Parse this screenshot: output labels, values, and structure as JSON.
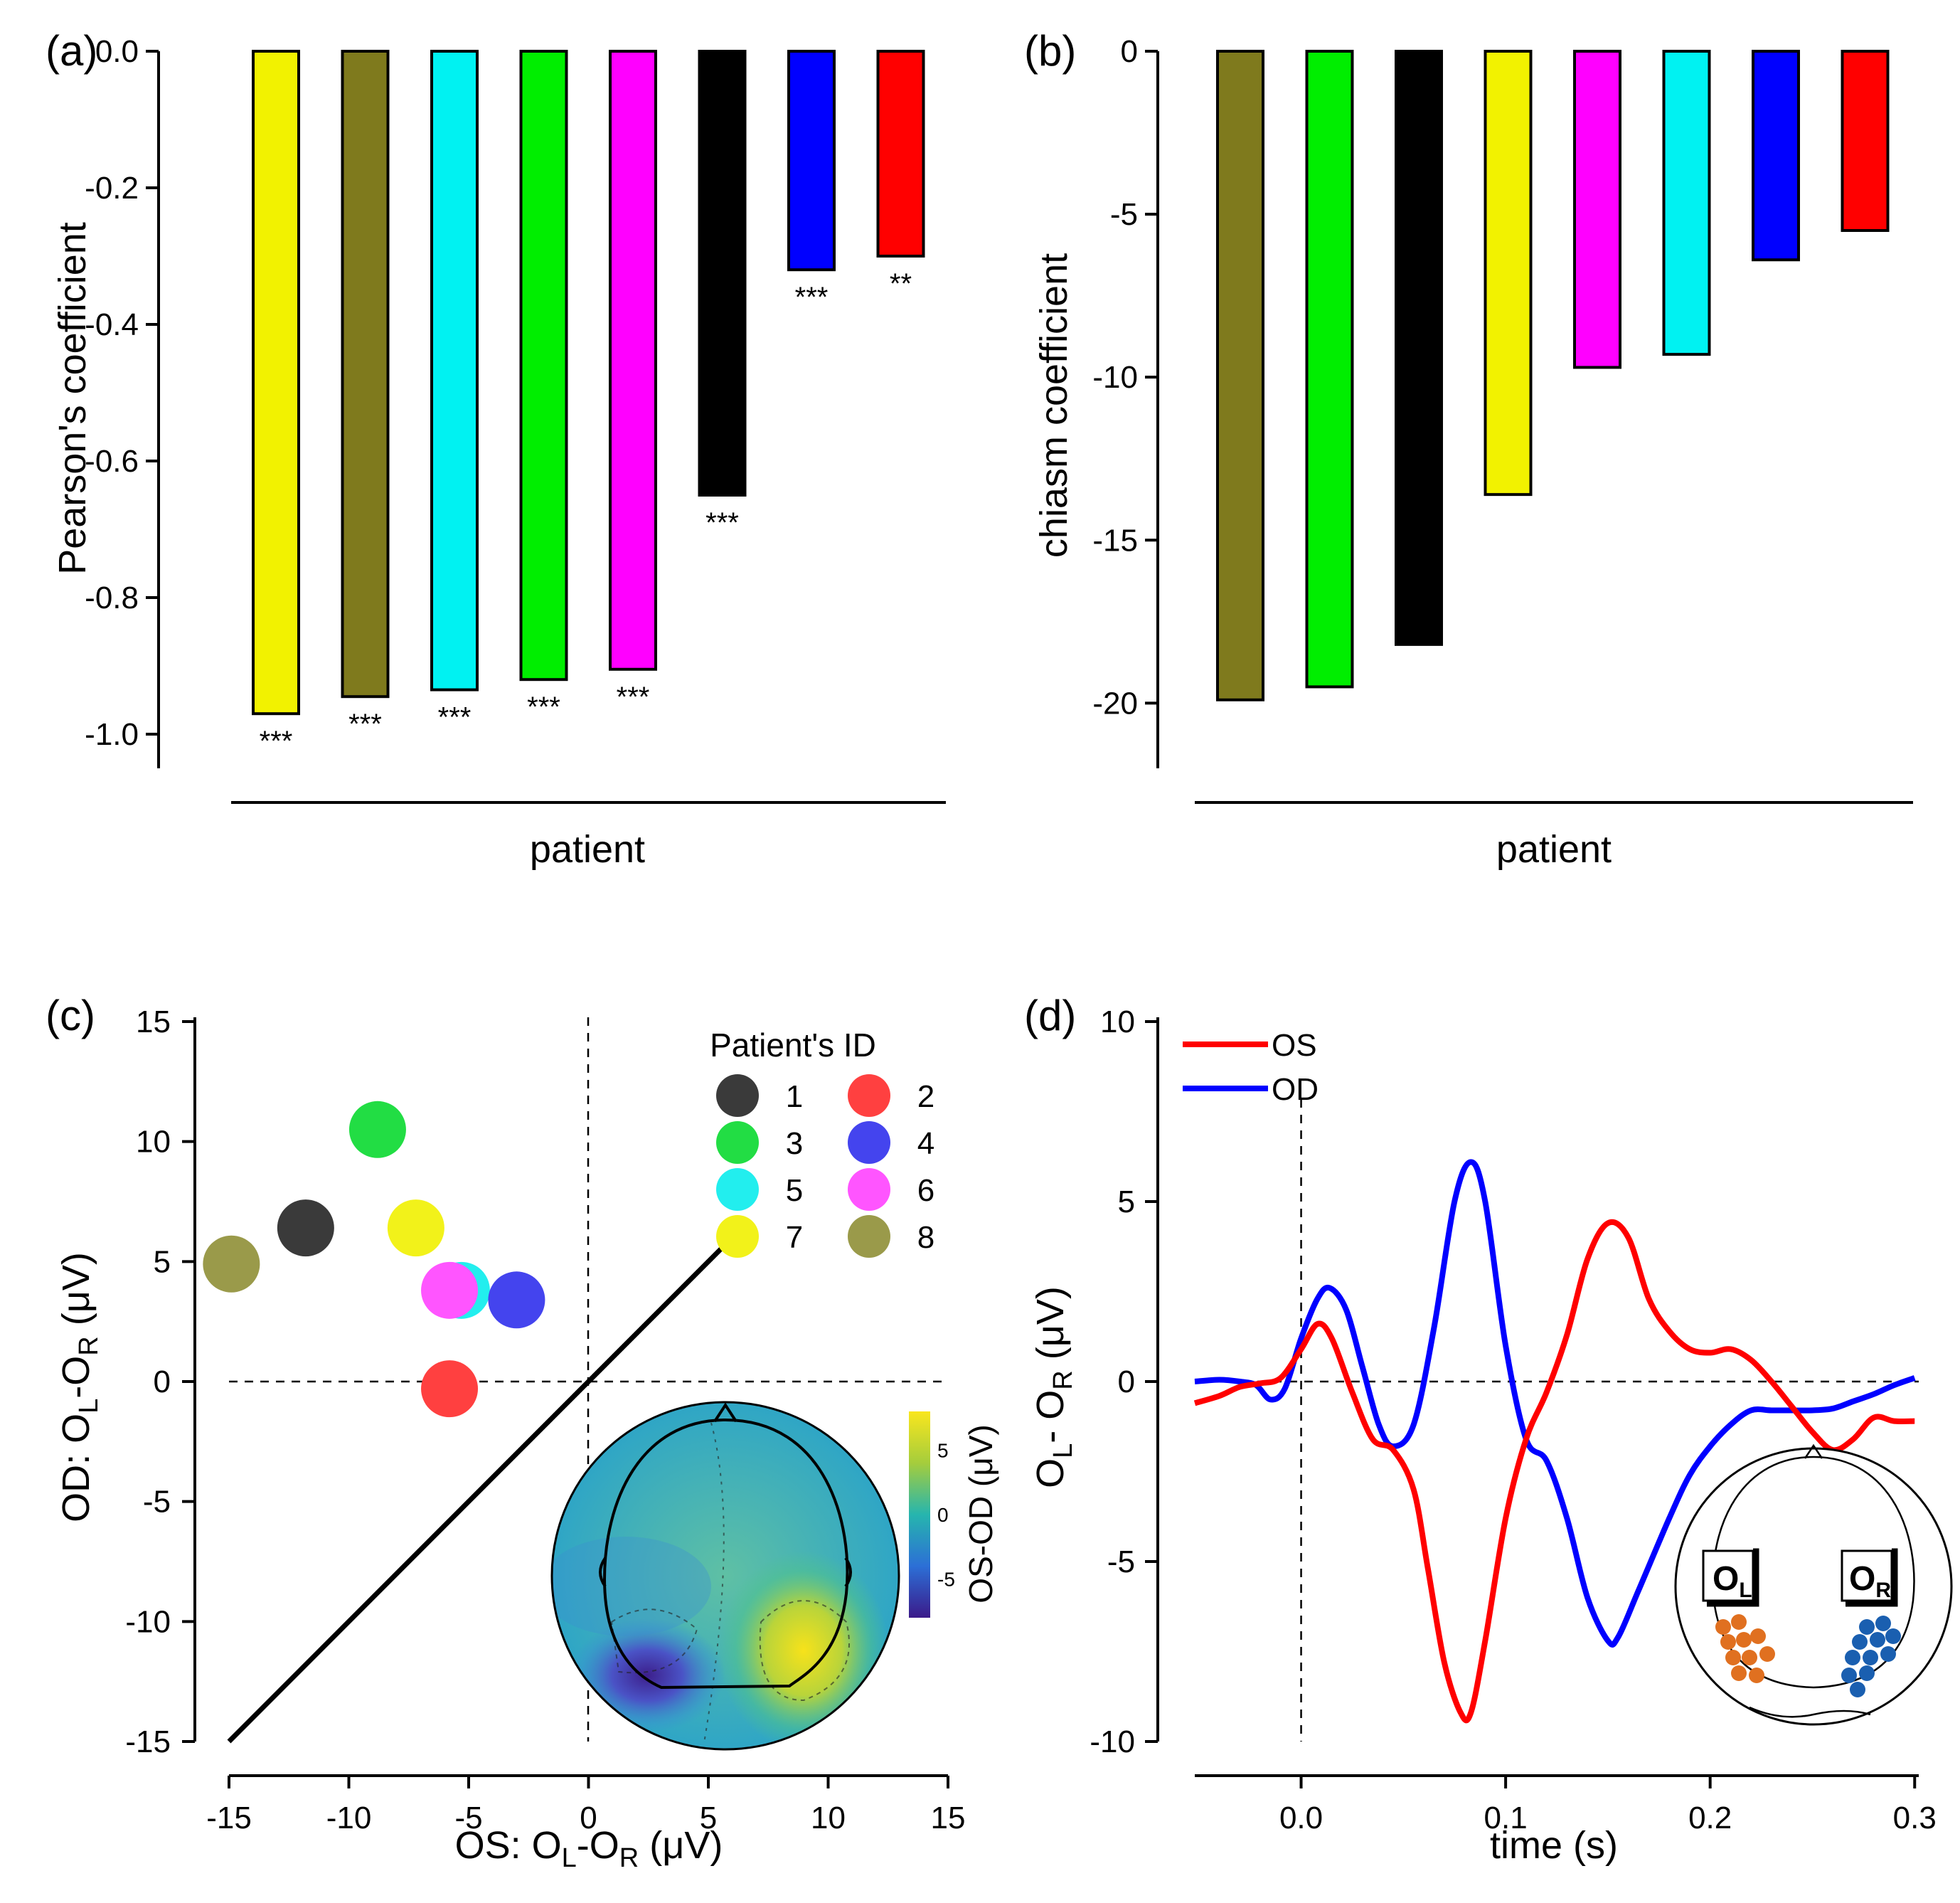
{
  "chart_data": [
    {
      "panel": "(a)",
      "type": "bar",
      "ylabel": "Pearson's coefficient",
      "xlabel": "patient",
      "ylim": [
        -1.05,
        0.0
      ],
      "yticks": [
        "0.0",
        "-0.2",
        "-0.4",
        "-0.6",
        "-0.8",
        "-1.0"
      ],
      "ytick_values": [
        0,
        -0.2,
        -0.4,
        -0.6,
        -0.8,
        -1.0
      ],
      "bars": [
        {
          "value": -0.97,
          "color": "#f2f200",
          "sig": "***"
        },
        {
          "value": -0.945,
          "color": "#7f7a1d",
          "sig": "***"
        },
        {
          "value": -0.935,
          "color": "#00f2f2",
          "sig": "***"
        },
        {
          "value": -0.92,
          "color": "#00ee00",
          "sig": "***"
        },
        {
          "value": -0.905,
          "color": "#ff00ff",
          "sig": "***"
        },
        {
          "value": -0.65,
          "color": "#000000",
          "sig": "***"
        },
        {
          "value": -0.32,
          "color": "#0000ff",
          "sig": "***"
        },
        {
          "value": -0.3,
          "color": "#ff0000",
          "sig": "**"
        }
      ]
    },
    {
      "panel": "(b)",
      "type": "bar",
      "ylabel": "chiasm coefficient",
      "xlabel": "patient",
      "ylim": [
        -22,
        0
      ],
      "yticks": [
        "0",
        "-5",
        "-10",
        "-15",
        "-20"
      ],
      "ytick_values": [
        0,
        -5,
        -10,
        -15,
        -20
      ],
      "bars": [
        {
          "value": -19.9,
          "color": "#7f7a1d"
        },
        {
          "value": -19.5,
          "color": "#00ee00"
        },
        {
          "value": -18.2,
          "color": "#000000"
        },
        {
          "value": -13.6,
          "color": "#f2f200"
        },
        {
          "value": -9.7,
          "color": "#ff00ff"
        },
        {
          "value": -9.3,
          "color": "#00f2f2"
        },
        {
          "value": -6.4,
          "color": "#0000ff"
        },
        {
          "value": -5.5,
          "color": "#ff0000"
        }
      ]
    },
    {
      "panel": "(c)",
      "type": "scatter",
      "xlabel_main": "OS: O",
      "xlabel_sub1": "L",
      "xlabel_mid": "-O",
      "xlabel_sub2": "R",
      "xlabel_unit": " (μV)",
      "ylabel_main": "OD: O",
      "ylabel_sub1": "L",
      "ylabel_mid": "-O",
      "ylabel_sub2": "R",
      "ylabel_unit": " (μV)",
      "xlim": [
        -15,
        15
      ],
      "ylim": [
        -15,
        15
      ],
      "xticks": [
        "-15",
        "-10",
        "-5",
        "0",
        "5",
        "10",
        "15"
      ],
      "yticks": [
        "15",
        "10",
        "5",
        "0",
        "-5",
        "-10",
        "-15"
      ],
      "tick_values": [
        -15,
        -10,
        -5,
        0,
        5,
        10,
        15
      ],
      "legend_title": "Patient's ID",
      "points": [
        {
          "id": "1",
          "x": -11.8,
          "y": 6.4,
          "color": "#3a3a3a"
        },
        {
          "id": "2",
          "x": -5.8,
          "y": -0.3,
          "color": "#ff4040"
        },
        {
          "id": "3",
          "x": -8.8,
          "y": 10.5,
          "color": "#22dd44"
        },
        {
          "id": "4",
          "x": -3.0,
          "y": 3.4,
          "color": "#4444ee"
        },
        {
          "id": "5",
          "x": -5.3,
          "y": 3.8,
          "color": "#22eeee"
        },
        {
          "id": "6",
          "x": -5.8,
          "y": 3.8,
          "color": "#ff55ff"
        },
        {
          "id": "7",
          "x": -7.2,
          "y": 6.4,
          "color": "#f2f21a"
        },
        {
          "id": "8",
          "x": -14.9,
          "y": 4.9,
          "color": "#9a9a4a"
        }
      ],
      "diagonal": [
        [
          -15,
          -15
        ],
        [
          6,
          6
        ]
      ],
      "colorbar_label": "OS-OD (μV)",
      "colorbar_ticks": [
        "5",
        "0",
        "-5"
      ],
      "colorbar_tick_values": [
        5,
        0,
        -5
      ],
      "colorbar_range": [
        -8,
        8
      ]
    },
    {
      "panel": "(d)",
      "type": "line",
      "xlabel": "time (s)",
      "ylabel_main": "O",
      "ylabel_sub1": "L",
      "ylabel_mid": "- O",
      "ylabel_sub2": "R",
      "ylabel_unit": " (μV)",
      "xlim": [
        -0.052,
        0.302
      ],
      "ylim": [
        -10,
        10
      ],
      "xticks": [
        "0.0",
        "0.1",
        "0.2",
        "0.3"
      ],
      "xtick_values": [
        0.0,
        0.1,
        0.2,
        0.3
      ],
      "yticks": [
        "10",
        "5",
        "0",
        "-5",
        "-10"
      ],
      "ytick_values": [
        10,
        5,
        0,
        -5,
        -10
      ],
      "series": [
        {
          "name": "OS",
          "color": "#ff0000",
          "x": [
            -0.052,
            -0.04,
            -0.03,
            -0.02,
            -0.01,
            0.0,
            0.008,
            0.015,
            0.025,
            0.035,
            0.045,
            0.055,
            0.062,
            0.07,
            0.078,
            0.083,
            0.09,
            0.1,
            0.11,
            0.12,
            0.13,
            0.14,
            0.15,
            0.16,
            0.17,
            0.18,
            0.19,
            0.2,
            0.21,
            0.22,
            0.23,
            0.24,
            0.25,
            0.26,
            0.27,
            0.28,
            0.29,
            0.3
          ],
          "y": [
            -0.6,
            -0.4,
            -0.15,
            -0.05,
            0.1,
            0.9,
            1.6,
            1.2,
            -0.3,
            -1.6,
            -1.9,
            -3.0,
            -5.2,
            -7.8,
            -9.2,
            -9.2,
            -7.2,
            -3.8,
            -1.6,
            -0.3,
            1.3,
            3.4,
            4.4,
            4.0,
            2.3,
            1.4,
            0.9,
            0.8,
            0.9,
            0.6,
            0.0,
            -0.7,
            -1.4,
            -1.9,
            -1.6,
            -1.0,
            -1.1,
            -1.1
          ]
        },
        {
          "name": "OD",
          "color": "#0000ff",
          "x": [
            -0.052,
            -0.04,
            -0.03,
            -0.022,
            -0.015,
            -0.008,
            0.0,
            0.008,
            0.014,
            0.022,
            0.03,
            0.038,
            0.045,
            0.055,
            0.065,
            0.075,
            0.083,
            0.09,
            0.1,
            0.11,
            0.12,
            0.13,
            0.14,
            0.15,
            0.155,
            0.165,
            0.18,
            0.19,
            0.2,
            0.21,
            0.22,
            0.23,
            0.24,
            0.25,
            0.26,
            0.27,
            0.28,
            0.29,
            0.3
          ],
          "y": [
            0.0,
            0.05,
            0.0,
            -0.1,
            -0.5,
            -0.2,
            1.2,
            2.3,
            2.6,
            2.0,
            0.4,
            -1.2,
            -1.8,
            -1.2,
            1.5,
            5.0,
            6.1,
            5.0,
            1.0,
            -1.6,
            -2.2,
            -3.8,
            -6.0,
            -7.2,
            -7.1,
            -5.8,
            -3.8,
            -2.6,
            -1.8,
            -1.2,
            -0.8,
            -0.8,
            -0.8,
            -0.8,
            -0.75,
            -0.55,
            -0.35,
            -0.1,
            0.1
          ]
        }
      ],
      "legend": [
        "OS",
        "OD"
      ],
      "inset_labels": {
        "left_main": "O",
        "left_sub": "L",
        "right_main": "O",
        "right_sub": "R"
      }
    }
  ]
}
